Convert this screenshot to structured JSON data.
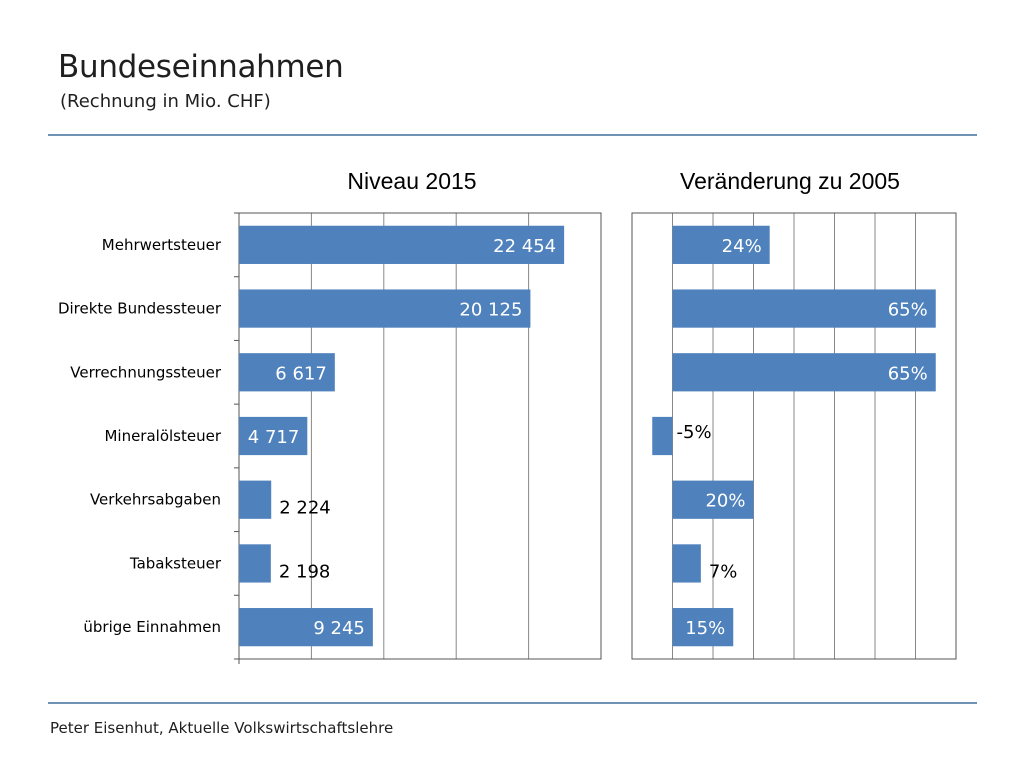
{
  "header": {
    "title": "Bundeseinnahmen",
    "subtitle": "(Rechnung in Mio. CHF)"
  },
  "footer": {
    "text": "Peter Eisenhut, Aktuelle Volkswirtschaftslehre"
  },
  "colors": {
    "bar": "#4f81bd",
    "rule": "#6f93b5",
    "grid": "#888888",
    "label_inside": "#ffffff",
    "label_outside": "#000000"
  },
  "chart_data": [
    {
      "type": "bar",
      "orientation": "horizontal",
      "title": "Niveau 2015",
      "categories": [
        "Mehrwertsteuer",
        "Direkte Bundessteuer",
        "Verrechnungssteuer",
        "Mineralölsteuer",
        "Verkehrsabgaben",
        "Tabaksteuer",
        "übrige Einnahmen"
      ],
      "values": [
        22454,
        20125,
        6617,
        4717,
        2224,
        2198,
        9245
      ],
      "data_labels": [
        "22 454",
        "20 125",
        "6 617",
        "4 717",
        "2 224",
        "2 198",
        "9 245"
      ],
      "xlim": [
        0,
        25000
      ],
      "grid": true,
      "legend": false
    },
    {
      "type": "bar",
      "orientation": "horizontal",
      "title": "Veränderung zu 2005",
      "categories": [
        "Mehrwertsteuer",
        "Direkte Bundessteuer",
        "Verrechnungssteuer",
        "Mineralölsteuer",
        "Verkehrsabgaben",
        "Tabaksteuer",
        "übrige Einnahmen"
      ],
      "values": [
        24,
        65,
        65,
        -5,
        20,
        7,
        15
      ],
      "data_labels": [
        "24%",
        "65%",
        "65%",
        "-5%",
        "20%",
        "7%",
        "15%"
      ],
      "xlim": [
        -10,
        70
      ],
      "grid": true,
      "legend": false
    }
  ]
}
